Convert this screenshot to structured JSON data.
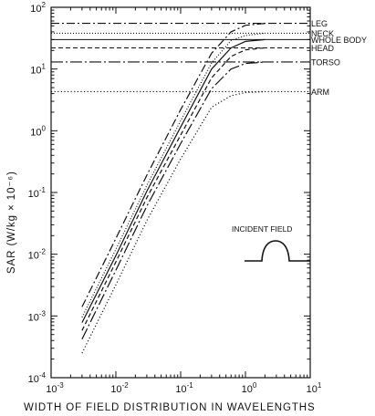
{
  "chart_data": {
    "type": "line",
    "title": "",
    "xlabel": "WIDTH OF FIELD DISTRIBUTION IN WAVELENGTHS",
    "ylabel": "SAR (W/kg × 10⁻⁶)",
    "xscale": "log",
    "yscale": "log",
    "xlim": [
      0.001,
      10
    ],
    "ylim": [
      0.0001,
      100
    ],
    "xticks": [
      {
        "base": "10",
        "exp": "-3"
      },
      {
        "base": "10",
        "exp": "-2"
      },
      {
        "base": "10",
        "exp": "-1"
      },
      {
        "base": "10",
        "exp": "0"
      },
      {
        "base": "10",
        "exp": "1"
      }
    ],
    "yticks": [
      {
        "base": "10",
        "exp": "-4"
      },
      {
        "base": "10",
        "exp": "-3"
      },
      {
        "base": "10",
        "exp": "-2"
      },
      {
        "base": "10",
        "exp": "-1"
      },
      {
        "base": "10",
        "exp": "0"
      },
      {
        "base": "10",
        "exp": "1"
      },
      {
        "base": "10",
        "exp": "2"
      }
    ],
    "grid": false,
    "legend": "right-side labels on asymptote lines",
    "series": [
      {
        "name": "LEG",
        "dash": "dash-dot",
        "asymptote": 55,
        "points": [
          [
            0.003,
            0.0014
          ],
          [
            0.01,
            0.018
          ],
          [
            0.03,
            0.19
          ],
          [
            0.1,
            2.2
          ],
          [
            0.3,
            18
          ],
          [
            0.6,
            40
          ],
          [
            1.0,
            51
          ],
          [
            2.0,
            55
          ]
        ]
      },
      {
        "name": "NECK",
        "dash": "fine-dot",
        "asymptote": 38,
        "points": [
          [
            0.003,
            0.00095
          ],
          [
            0.01,
            0.012
          ],
          [
            0.03,
            0.13
          ],
          [
            0.1,
            1.45
          ],
          [
            0.3,
            12.5
          ],
          [
            0.6,
            29
          ],
          [
            1.0,
            35
          ],
          [
            2.0,
            38
          ]
        ]
      },
      {
        "name": "WHOLE BODY",
        "dash": "solid",
        "asymptote": 30,
        "points": [
          [
            0.003,
            0.00078
          ],
          [
            0.01,
            0.0095
          ],
          [
            0.03,
            0.105
          ],
          [
            0.1,
            1.15
          ],
          [
            0.3,
            10
          ],
          [
            0.6,
            22
          ],
          [
            1.0,
            28
          ],
          [
            2.0,
            30
          ]
        ]
      },
      {
        "name": "HEAD",
        "dash": "short-dash",
        "asymptote": 22,
        "points": [
          [
            0.003,
            0.00058
          ],
          [
            0.01,
            0.0075
          ],
          [
            0.03,
            0.082
          ],
          [
            0.1,
            0.85
          ],
          [
            0.3,
            7.2
          ],
          [
            0.6,
            16
          ],
          [
            1.0,
            20.5
          ],
          [
            2.0,
            22
          ]
        ]
      },
      {
        "name": "TORSO",
        "dash": "long-dash-dot",
        "asymptote": 13,
        "points": [
          [
            0.003,
            0.00042
          ],
          [
            0.01,
            0.0055
          ],
          [
            0.03,
            0.06
          ],
          [
            0.1,
            0.62
          ],
          [
            0.3,
            4.8
          ],
          [
            0.6,
            10
          ],
          [
            1.0,
            12.3
          ],
          [
            2.0,
            13
          ]
        ]
      },
      {
        "name": "ARM",
        "dash": "dotted",
        "asymptote": 4.3,
        "points": [
          [
            0.003,
            0.00025
          ],
          [
            0.01,
            0.0032
          ],
          [
            0.03,
            0.035
          ],
          [
            0.1,
            0.35
          ],
          [
            0.3,
            2.4
          ],
          [
            0.6,
            3.7
          ],
          [
            1.0,
            4.15
          ],
          [
            2.0,
            4.3
          ]
        ]
      }
    ],
    "inset": {
      "label": "INCIDENT FIELD"
    }
  }
}
